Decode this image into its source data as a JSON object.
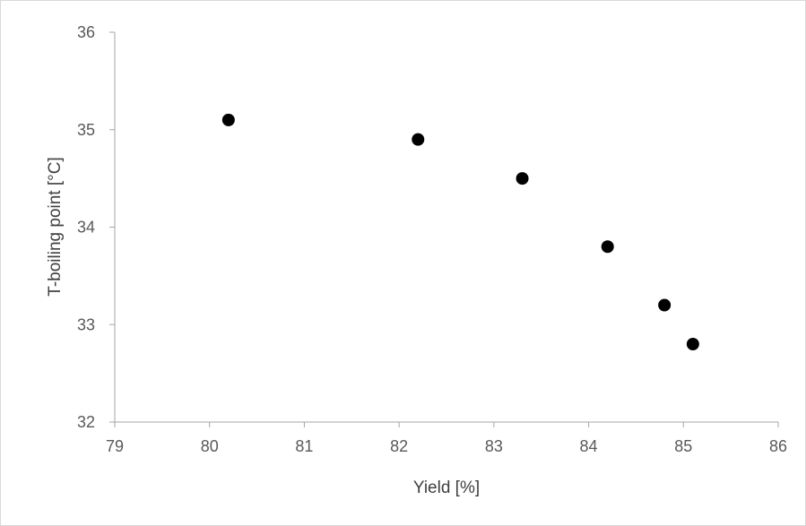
{
  "chart_data": {
    "type": "scatter",
    "title": "",
    "xlabel": "Yield [%]",
    "ylabel": "T-boiling point [°C]",
    "xlim": [
      79,
      86
    ],
    "ylim": [
      32,
      36
    ],
    "x_ticks": [
      79,
      80,
      81,
      82,
      83,
      84,
      85,
      86
    ],
    "y_ticks": [
      32,
      33,
      34,
      35,
      36
    ],
    "grid": false,
    "legend": "none",
    "marker_color": "#000000",
    "axis_color": "#a6a6a6",
    "series": [
      {
        "points": [
          {
            "x": 80.2,
            "y": 35.1
          },
          {
            "x": 82.2,
            "y": 34.9
          },
          {
            "x": 83.3,
            "y": 34.5
          },
          {
            "x": 84.2,
            "y": 33.8
          },
          {
            "x": 84.8,
            "y": 33.2
          },
          {
            "x": 85.1,
            "y": 32.8
          }
        ]
      }
    ]
  }
}
